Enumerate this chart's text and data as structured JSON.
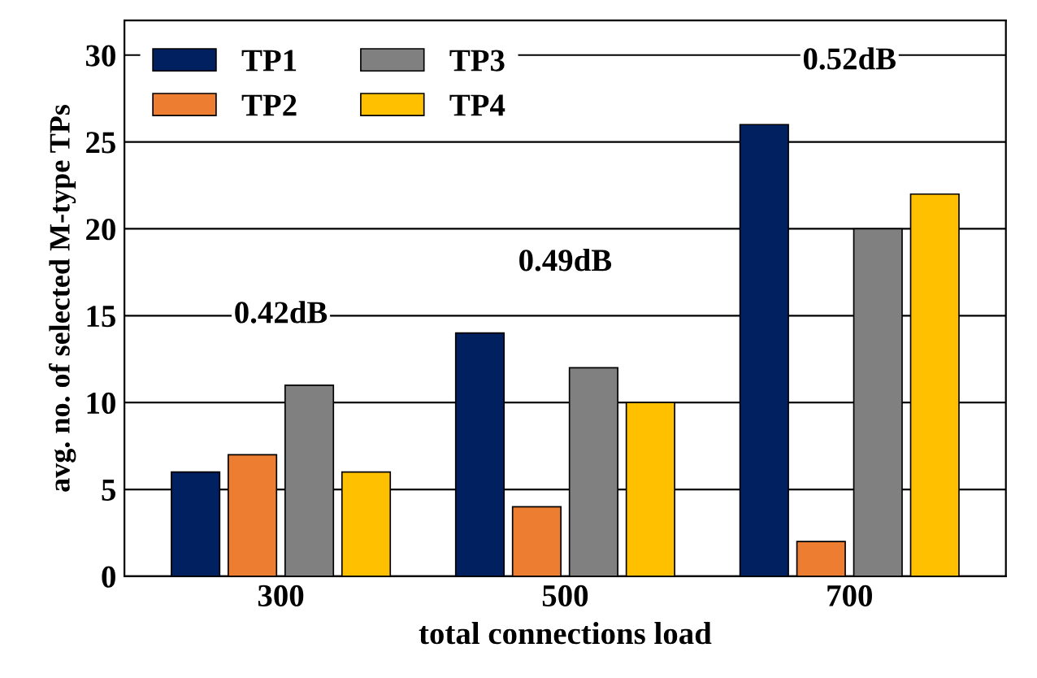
{
  "chart_data": {
    "type": "bar",
    "xlabel": "total connections load",
    "ylabel": "avg. no. of selected M-type TPs",
    "categories": [
      "300",
      "500",
      "700"
    ],
    "series": [
      {
        "name": "TP1",
        "color": "#002060",
        "values": [
          6,
          14,
          26
        ]
      },
      {
        "name": "TP2",
        "color": "#ed7d31",
        "values": [
          7,
          4,
          2
        ]
      },
      {
        "name": "TP3",
        "color": "#808080",
        "values": [
          11,
          12,
          20
        ]
      },
      {
        "name": "TP4",
        "color": "#ffc000",
        "values": [
          6,
          10,
          22
        ]
      }
    ],
    "ylim": [
      0,
      32
    ],
    "yticks": [
      0,
      5,
      10,
      15,
      20,
      25,
      30
    ],
    "grid": "y",
    "legend": "top left",
    "annotations": [
      "0.42dB",
      "0.49dB",
      "0.52dB"
    ]
  }
}
